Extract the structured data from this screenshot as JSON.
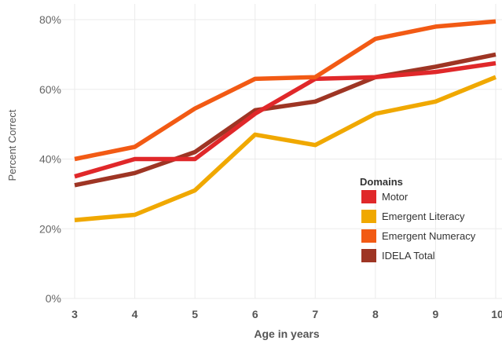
{
  "chart_data": {
    "type": "line",
    "xlabel": "Age in years",
    "ylabel": "Percent Correct",
    "x": [
      3,
      4,
      5,
      6,
      7,
      8,
      9,
      10
    ],
    "x_tick_labels": [
      "3",
      "4",
      "5",
      "6",
      "7",
      "8",
      "9",
      "10"
    ],
    "ylim": [
      0,
      80
    ],
    "y_ticks": [
      0,
      20,
      40,
      60,
      80
    ],
    "y_tick_labels": [
      "0%",
      "20%",
      "40%",
      "60%",
      "80%"
    ],
    "grid": true,
    "legend": {
      "title": "Domains",
      "placement": "center-right"
    },
    "series": [
      {
        "name": "Emergent Literacy",
        "color": "#F0A800",
        "values": [
          22.5,
          24,
          31,
          47,
          44,
          53,
          56.5,
          63.5
        ]
      },
      {
        "name": "IDELA Total",
        "color": "#9E3524",
        "values": [
          32.5,
          36,
          42,
          54,
          56.5,
          63.5,
          66.5,
          70
        ]
      },
      {
        "name": "Motor",
        "color": "#E0282A",
        "values": [
          35,
          40,
          40,
          53,
          63,
          63.5,
          65,
          67.5
        ]
      },
      {
        "name": "Emergent Numeracy",
        "color": "#F25A14",
        "values": [
          40,
          43.5,
          54.5,
          63,
          63.5,
          74.5,
          78,
          79.5
        ]
      }
    ],
    "legend_order": [
      "Motor",
      "Emergent Literacy",
      "Emergent Numeracy",
      "IDELA Total"
    ]
  }
}
